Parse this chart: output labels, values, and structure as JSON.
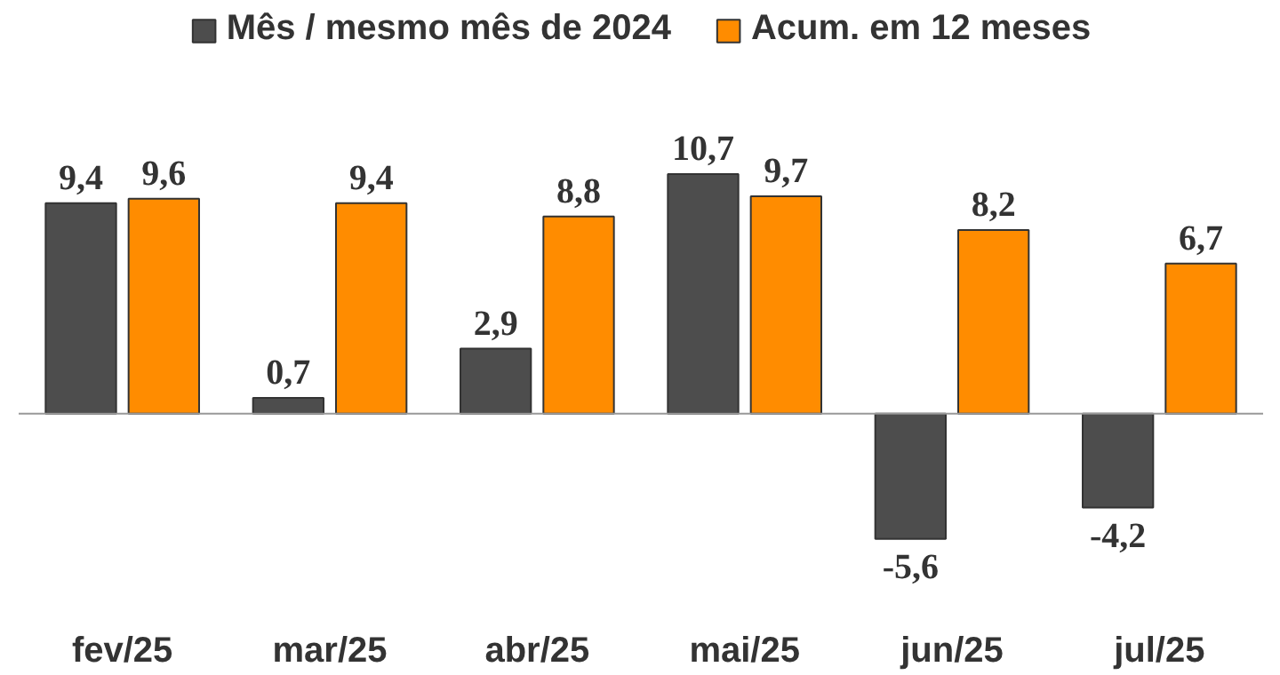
{
  "chart_data": {
    "type": "bar",
    "categories": [
      "fev/25",
      "mar/25",
      "abr/25",
      "mai/25",
      "jun/25",
      "jul/25"
    ],
    "legend": "top",
    "grid": false,
    "series": [
      {
        "name": "Mês / mesmo mês de 2024",
        "color": "#4d4d4d",
        "values": [
          9.4,
          0.7,
          2.9,
          10.7,
          -5.6,
          -4.2
        ],
        "value_labels": [
          "9,4",
          "0,7",
          "2,9",
          "10,7",
          "-5,6",
          "-4,2"
        ]
      },
      {
        "name": "Acum. em 12 meses",
        "color": "#ff8c00",
        "values": [
          9.6,
          9.4,
          8.8,
          9.7,
          8.2,
          6.7
        ],
        "value_labels": [
          "9,6",
          "9,4",
          "8,8",
          "9,7",
          "8,2",
          "6,7"
        ]
      }
    ]
  }
}
